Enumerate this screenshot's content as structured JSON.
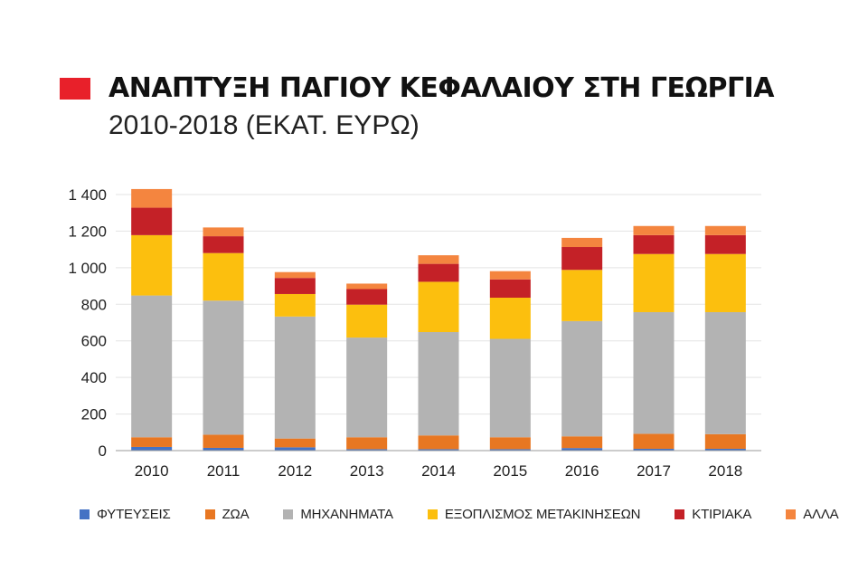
{
  "title": "ΑΝΑΠΤΥΞΗ ΠΑΓΙΟΥ ΚΕΦΑΛΑΙΟΥ ΣΤΗ ΓΕΩΡΓΙΑ",
  "subtitle": "2010-2018 (ΕΚΑΤ. ΕΥΡΩ)",
  "colors": {
    "marker": "#e8202a"
  },
  "chart_data": {
    "type": "bar",
    "stacked": true,
    "title": "ΑΝΑΠΤΥΞΗ ΠΑΓΙΟΥ ΚΕΦΑΛΑΙΟΥ ΣΤΗ ΓΕΩΡΓΙΑ",
    "subtitle": "2010-2018 (ΕΚΑΤ. ΕΥΡΩ)",
    "xlabel": "",
    "ylabel": "",
    "ylim": [
      0,
      1400
    ],
    "yticks": [
      0,
      200,
      400,
      600,
      800,
      1000,
      1200,
      1400
    ],
    "ytick_labels": [
      "0",
      "200",
      "400",
      "600",
      "800",
      "1 000",
      "1 200",
      "1 400"
    ],
    "grid": true,
    "legend_position": "bottom",
    "categories": [
      "2010",
      "2011",
      "2012",
      "2013",
      "2014",
      "2015",
      "2016",
      "2017",
      "2018"
    ],
    "series": [
      {
        "name": "ΦΥΤΕΥΣΕΙΣ",
        "color": "#4472c4",
        "values": [
          20,
          15,
          18,
          8,
          8,
          8,
          14,
          10,
          10
        ]
      },
      {
        "name": "ΖΩΑ",
        "color": "#e87722",
        "values": [
          53,
          72,
          48,
          65,
          75,
          65,
          64,
          82,
          80
        ]
      },
      {
        "name": "ΜΗΧΑΝΗΜΑΤΑ",
        "color": "#b3b3b3",
        "values": [
          775,
          733,
          667,
          545,
          565,
          538,
          630,
          665,
          667
        ]
      },
      {
        "name": "ΕΞΟΠΛΙΣΜΟΣ ΜΕΤΑΚΙΝΗΣΕΩΝ",
        "color": "#fcbf0e",
        "values": [
          330,
          260,
          123,
          180,
          275,
          225,
          280,
          318,
          318
        ]
      },
      {
        "name": "ΚΤΙΡΙΑΚΑ",
        "color": "#c42127",
        "values": [
          150,
          92,
          88,
          85,
          98,
          100,
          125,
          103,
          103
        ]
      },
      {
        "name": "ΑΛΛΑ",
        "color": "#f4853f",
        "values": [
          102,
          48,
          32,
          30,
          47,
          45,
          50,
          50,
          50
        ]
      }
    ]
  }
}
